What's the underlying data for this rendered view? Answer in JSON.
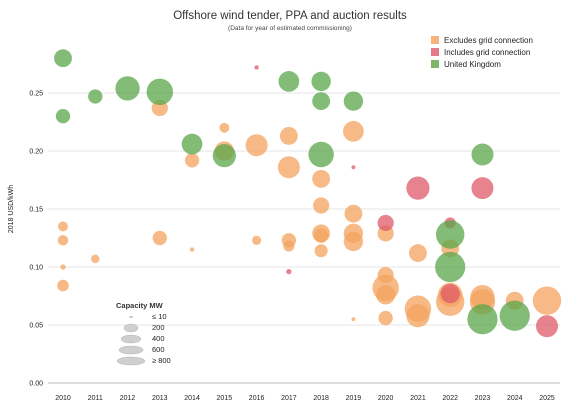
{
  "chart_data": {
    "type": "scatter",
    "title": "Offshore wind tender, PPA and auction results",
    "subtitle": "(Data for year of estimated commissioning)",
    "ylabel": "2018 USD/kWh",
    "xlabel": "",
    "x_categories": [
      "2010",
      "2011",
      "2012",
      "2013",
      "2014",
      "2015",
      "2016",
      "2017",
      "2018",
      "2019",
      "2020",
      "2021",
      "2022",
      "2023",
      "2024",
      "2025"
    ],
    "ylim": [
      0,
      0.3
    ],
    "yticks": [
      "0.00",
      "0.05",
      "0.10",
      "0.15",
      "0.20",
      "0.25"
    ],
    "grid": true,
    "legend_position": "top-right",
    "colors": {
      "Excludes grid connection": "#f4a35e",
      "Includes grid connection": "#df5a68",
      "United Kingdom": "#5aa64a"
    },
    "series": [
      {
        "name": "Excludes grid connection",
        "points": [
          {
            "x": "2010",
            "y": 0.135,
            "mw": 60
          },
          {
            "x": "2010",
            "y": 0.123,
            "mw": 70
          },
          {
            "x": "2010",
            "y": 0.1,
            "mw": 10
          },
          {
            "x": "2010",
            "y": 0.084,
            "mw": 90
          },
          {
            "x": "2011",
            "y": 0.107,
            "mw": 40
          },
          {
            "x": "2013",
            "y": 0.237,
            "mw": 200
          },
          {
            "x": "2013",
            "y": 0.125,
            "mw": 150
          },
          {
            "x": "2014",
            "y": 0.192,
            "mw": 150
          },
          {
            "x": "2014",
            "y": 0.115,
            "mw": 5
          },
          {
            "x": "2015",
            "y": 0.22,
            "mw": 60
          },
          {
            "x": "2015",
            "y": 0.2,
            "mw": 300
          },
          {
            "x": "2016",
            "y": 0.205,
            "mw": 400
          },
          {
            "x": "2016",
            "y": 0.123,
            "mw": 50
          },
          {
            "x": "2017",
            "y": 0.213,
            "mw": 250
          },
          {
            "x": "2017",
            "y": 0.186,
            "mw": 400
          },
          {
            "x": "2017",
            "y": 0.123,
            "mw": 150
          },
          {
            "x": "2017",
            "y": 0.118,
            "mw": 80
          },
          {
            "x": "2018",
            "y": 0.176,
            "mw": 250
          },
          {
            "x": "2018",
            "y": 0.153,
            "mw": 200
          },
          {
            "x": "2018",
            "y": 0.129,
            "mw": 250
          },
          {
            "x": "2018",
            "y": 0.127,
            "mw": 150
          },
          {
            "x": "2018",
            "y": 0.114,
            "mw": 120
          },
          {
            "x": "2019",
            "y": 0.217,
            "mw": 350
          },
          {
            "x": "2019",
            "y": 0.146,
            "mw": 250
          },
          {
            "x": "2019",
            "y": 0.129,
            "mw": 300
          },
          {
            "x": "2019",
            "y": 0.122,
            "mw": 300
          },
          {
            "x": "2019",
            "y": 0.055,
            "mw": 3
          },
          {
            "x": "2020",
            "y": 0.129,
            "mw": 200
          },
          {
            "x": "2020",
            "y": 0.093,
            "mw": 200
          },
          {
            "x": "2020",
            "y": 0.082,
            "mw": 600
          },
          {
            "x": "2020",
            "y": 0.076,
            "mw": 300
          },
          {
            "x": "2020",
            "y": 0.056,
            "mw": 150
          },
          {
            "x": "2021",
            "y": 0.112,
            "mw": 250
          },
          {
            "x": "2021",
            "y": 0.064,
            "mw": 600
          },
          {
            "x": "2021",
            "y": 0.058,
            "mw": 450
          },
          {
            "x": "2022",
            "y": 0.116,
            "mw": 250
          },
          {
            "x": "2022",
            "y": 0.076,
            "mw": 500
          },
          {
            "x": "2022",
            "y": 0.07,
            "mw": 700
          },
          {
            "x": "2023",
            "y": 0.074,
            "mw": 500
          },
          {
            "x": "2023",
            "y": 0.07,
            "mw": 550
          },
          {
            "x": "2024",
            "y": 0.071,
            "mw": 250
          },
          {
            "x": "2025",
            "y": 0.071,
            "mw": 700
          }
        ]
      },
      {
        "name": "Includes grid connection",
        "points": [
          {
            "x": "2016",
            "y": 0.272,
            "mw": 5
          },
          {
            "x": "2017",
            "y": 0.096,
            "mw": 10
          },
          {
            "x": "2019",
            "y": 0.186,
            "mw": 3
          },
          {
            "x": "2020",
            "y": 0.138,
            "mw": 200
          },
          {
            "x": "2021",
            "y": 0.168,
            "mw": 450
          },
          {
            "x": "2022",
            "y": 0.138,
            "mw": 80
          },
          {
            "x": "2022",
            "y": 0.077,
            "mw": 300
          },
          {
            "x": "2023",
            "y": 0.168,
            "mw": 400
          },
          {
            "x": "2025",
            "y": 0.049,
            "mw": 400
          }
        ]
      },
      {
        "name": "United Kingdom",
        "points": [
          {
            "x": "2010",
            "y": 0.28,
            "mw": 250
          },
          {
            "x": "2010",
            "y": 0.23,
            "mw": 150
          },
          {
            "x": "2011",
            "y": 0.247,
            "mw": 150
          },
          {
            "x": "2012",
            "y": 0.254,
            "mw": 500
          },
          {
            "x": "2013",
            "y": 0.251,
            "mw": 600
          },
          {
            "x": "2014",
            "y": 0.206,
            "mw": 350
          },
          {
            "x": "2015",
            "y": 0.196,
            "mw": 450
          },
          {
            "x": "2017",
            "y": 0.26,
            "mw": 350
          },
          {
            "x": "2018",
            "y": 0.26,
            "mw": 300
          },
          {
            "x": "2018",
            "y": 0.243,
            "mw": 250
          },
          {
            "x": "2018",
            "y": 0.197,
            "mw": 550
          },
          {
            "x": "2019",
            "y": 0.243,
            "mw": 300
          },
          {
            "x": "2022",
            "y": 0.128,
            "mw": 700
          },
          {
            "x": "2022",
            "y": 0.1,
            "mw": 800
          },
          {
            "x": "2023",
            "y": 0.197,
            "mw": 400
          },
          {
            "x": "2023",
            "y": 0.055,
            "mw": 800
          },
          {
            "x": "2024",
            "y": 0.058,
            "mw": 800
          }
        ]
      }
    ],
    "size_legend": {
      "title": "Capacity MW",
      "items": [
        {
          "label": "≤ 10",
          "mw": 10
        },
        {
          "label": "200",
          "mw": 200
        },
        {
          "label": "400",
          "mw": 400
        },
        {
          "label": "600",
          "mw": 600
        },
        {
          "label": "≥ 800",
          "mw": 800
        }
      ]
    }
  }
}
